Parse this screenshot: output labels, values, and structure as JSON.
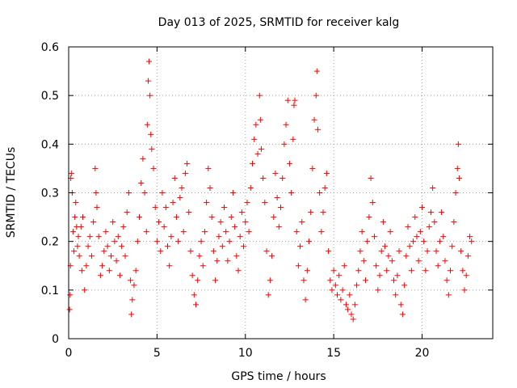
{
  "chart_data": {
    "type": "scatter",
    "title": "Day 013 of 2025, SRMTID for receiver kalg",
    "xlabel": "GPS time / hours",
    "ylabel": "SRMTID / TECUs",
    "xlim": [
      0,
      24
    ],
    "ylim": [
      0,
      0.6
    ],
    "xticks": [
      0,
      5,
      10,
      15,
      20
    ],
    "yticks": [
      0,
      0.1,
      0.2,
      0.3,
      0.4,
      0.5,
      0.6
    ],
    "xtick_labels": [
      "0",
      "5",
      "10",
      "15",
      "20"
    ],
    "ytick_labels": [
      "0",
      "0.1",
      "0.2",
      "0.3",
      "0.4",
      "0.5",
      "0.6"
    ],
    "grid": true,
    "marker": "+",
    "series_color": "#ff0000",
    "series": [
      {
        "name": "SRMTID",
        "points": [
          [
            0.05,
            0.06
          ],
          [
            0.08,
            0.09
          ],
          [
            0.1,
            0.15
          ],
          [
            0.12,
            0.33
          ],
          [
            0.15,
            0.34
          ],
          [
            0.2,
            0.3
          ],
          [
            0.25,
            0.22
          ],
          [
            0.3,
            0.18
          ],
          [
            0.35,
            0.25
          ],
          [
            0.4,
            0.28
          ],
          [
            0.45,
            0.23
          ],
          [
            0.5,
            0.19
          ],
          [
            0.55,
            0.21
          ],
          [
            0.6,
            0.17
          ],
          [
            0.7,
            0.23
          ],
          [
            0.75,
            0.14
          ],
          [
            0.8,
            0.25
          ],
          [
            0.9,
            0.1
          ],
          [
            1.0,
            0.15
          ],
          [
            1.1,
            0.19
          ],
          [
            1.2,
            0.21
          ],
          [
            1.3,
            0.17
          ],
          [
            1.4,
            0.24
          ],
          [
            1.5,
            0.35
          ],
          [
            1.55,
            0.3
          ],
          [
            1.6,
            0.27
          ],
          [
            1.7,
            0.21
          ],
          [
            1.8,
            0.13
          ],
          [
            1.9,
            0.15
          ],
          [
            2.0,
            0.18
          ],
          [
            2.1,
            0.22
          ],
          [
            2.2,
            0.19
          ],
          [
            2.3,
            0.14
          ],
          [
            2.4,
            0.17
          ],
          [
            2.5,
            0.24
          ],
          [
            2.6,
            0.2
          ],
          [
            2.7,
            0.16
          ],
          [
            2.8,
            0.21
          ],
          [
            2.9,
            0.13
          ],
          [
            3.0,
            0.19
          ],
          [
            3.1,
            0.23
          ],
          [
            3.2,
            0.17
          ],
          [
            3.3,
            0.26
          ],
          [
            3.4,
            0.3
          ],
          [
            3.5,
            0.12
          ],
          [
            3.55,
            0.05
          ],
          [
            3.6,
            0.08
          ],
          [
            3.7,
            0.11
          ],
          [
            3.8,
            0.14
          ],
          [
            3.9,
            0.2
          ],
          [
            4.0,
            0.25
          ],
          [
            4.1,
            0.32
          ],
          [
            4.2,
            0.37
          ],
          [
            4.3,
            0.3
          ],
          [
            4.4,
            0.22
          ],
          [
            4.45,
            0.44
          ],
          [
            4.5,
            0.53
          ],
          [
            4.55,
            0.57
          ],
          [
            4.6,
            0.5
          ],
          [
            4.65,
            0.42
          ],
          [
            4.7,
            0.39
          ],
          [
            4.8,
            0.35
          ],
          [
            4.9,
            0.27
          ],
          [
            5.0,
            0.2
          ],
          [
            5.1,
            0.24
          ],
          [
            5.2,
            0.18
          ],
          [
            5.3,
            0.3
          ],
          [
            5.4,
            0.23
          ],
          [
            5.5,
            0.27
          ],
          [
            5.6,
            0.19
          ],
          [
            5.7,
            0.15
          ],
          [
            5.8,
            0.21
          ],
          [
            5.9,
            0.28
          ],
          [
            6.0,
            0.33
          ],
          [
            6.1,
            0.25
          ],
          [
            6.2,
            0.2
          ],
          [
            6.3,
            0.29
          ],
          [
            6.4,
            0.31
          ],
          [
            6.5,
            0.22
          ],
          [
            6.6,
            0.34
          ],
          [
            6.7,
            0.36
          ],
          [
            6.8,
            0.26
          ],
          [
            6.9,
            0.18
          ],
          [
            7.0,
            0.13
          ],
          [
            7.1,
            0.09
          ],
          [
            7.2,
            0.07
          ],
          [
            7.3,
            0.12
          ],
          [
            7.4,
            0.17
          ],
          [
            7.5,
            0.2
          ],
          [
            7.6,
            0.15
          ],
          [
            7.7,
            0.22
          ],
          [
            7.8,
            0.28
          ],
          [
            7.9,
            0.35
          ],
          [
            8.0,
            0.31
          ],
          [
            8.1,
            0.25
          ],
          [
            8.2,
            0.18
          ],
          [
            8.3,
            0.12
          ],
          [
            8.4,
            0.16
          ],
          [
            8.5,
            0.21
          ],
          [
            8.6,
            0.24
          ],
          [
            8.7,
            0.19
          ],
          [
            8.8,
            0.27
          ],
          [
            8.9,
            0.22
          ],
          [
            9.0,
            0.16
          ],
          [
            9.1,
            0.2
          ],
          [
            9.2,
            0.25
          ],
          [
            9.3,
            0.3
          ],
          [
            9.4,
            0.23
          ],
          [
            9.5,
            0.17
          ],
          [
            9.6,
            0.14
          ],
          [
            9.7,
            0.21
          ],
          [
            9.8,
            0.26
          ],
          [
            9.9,
            0.19
          ],
          [
            10.0,
            0.24
          ],
          [
            10.1,
            0.28
          ],
          [
            10.2,
            0.22
          ],
          [
            10.3,
            0.31
          ],
          [
            10.4,
            0.36
          ],
          [
            10.5,
            0.41
          ],
          [
            10.6,
            0.44
          ],
          [
            10.7,
            0.38
          ],
          [
            10.8,
            0.5
          ],
          [
            10.85,
            0.45
          ],
          [
            10.9,
            0.39
          ],
          [
            11.0,
            0.33
          ],
          [
            11.1,
            0.28
          ],
          [
            11.2,
            0.18
          ],
          [
            11.3,
            0.09
          ],
          [
            11.4,
            0.12
          ],
          [
            11.5,
            0.17
          ],
          [
            11.6,
            0.25
          ],
          [
            11.7,
            0.34
          ],
          [
            11.8,
            0.29
          ],
          [
            11.9,
            0.23
          ],
          [
            12.0,
            0.27
          ],
          [
            12.1,
            0.33
          ],
          [
            12.2,
            0.4
          ],
          [
            12.3,
            0.44
          ],
          [
            12.4,
            0.49
          ],
          [
            12.5,
            0.36
          ],
          [
            12.6,
            0.3
          ],
          [
            12.7,
            0.41
          ],
          [
            12.75,
            0.48
          ],
          [
            12.8,
            0.49
          ],
          [
            12.9,
            0.22
          ],
          [
            13.0,
            0.15
          ],
          [
            13.1,
            0.19
          ],
          [
            13.2,
            0.24
          ],
          [
            13.3,
            0.12
          ],
          [
            13.4,
            0.08
          ],
          [
            13.5,
            0.14
          ],
          [
            13.6,
            0.2
          ],
          [
            13.7,
            0.26
          ],
          [
            13.8,
            0.35
          ],
          [
            13.9,
            0.45
          ],
          [
            14.0,
            0.5
          ],
          [
            14.05,
            0.55
          ],
          [
            14.1,
            0.43
          ],
          [
            14.2,
            0.3
          ],
          [
            14.3,
            0.22
          ],
          [
            14.4,
            0.26
          ],
          [
            14.5,
            0.31
          ],
          [
            14.6,
            0.34
          ],
          [
            14.7,
            0.18
          ],
          [
            14.8,
            0.12
          ],
          [
            14.9,
            0.1
          ],
          [
            15.0,
            0.14
          ],
          [
            15.1,
            0.11
          ],
          [
            15.2,
            0.09
          ],
          [
            15.3,
            0.13
          ],
          [
            15.4,
            0.08
          ],
          [
            15.5,
            0.1
          ],
          [
            15.6,
            0.15
          ],
          [
            15.7,
            0.07
          ],
          [
            15.8,
            0.06
          ],
          [
            15.9,
            0.09
          ],
          [
            16.0,
            0.05
          ],
          [
            16.1,
            0.04
          ],
          [
            16.2,
            0.07
          ],
          [
            16.3,
            0.11
          ],
          [
            16.4,
            0.14
          ],
          [
            16.5,
            0.18
          ],
          [
            16.6,
            0.22
          ],
          [
            16.7,
            0.16
          ],
          [
            16.8,
            0.12
          ],
          [
            16.9,
            0.2
          ],
          [
            17.0,
            0.25
          ],
          [
            17.1,
            0.33
          ],
          [
            17.2,
            0.28
          ],
          [
            17.3,
            0.21
          ],
          [
            17.4,
            0.15
          ],
          [
            17.5,
            0.1
          ],
          [
            17.6,
            0.13
          ],
          [
            17.7,
            0.18
          ],
          [
            17.8,
            0.24
          ],
          [
            17.9,
            0.19
          ],
          [
            18.0,
            0.14
          ],
          [
            18.1,
            0.17
          ],
          [
            18.2,
            0.22
          ],
          [
            18.3,
            0.16
          ],
          [
            18.4,
            0.12
          ],
          [
            18.5,
            0.09
          ],
          [
            18.6,
            0.13
          ],
          [
            18.7,
            0.18
          ],
          [
            18.8,
            0.07
          ],
          [
            18.9,
            0.05
          ],
          [
            19.0,
            0.11
          ],
          [
            19.1,
            0.17
          ],
          [
            19.2,
            0.23
          ],
          [
            19.3,
            0.19
          ],
          [
            19.4,
            0.14
          ],
          [
            19.5,
            0.2
          ],
          [
            19.6,
            0.25
          ],
          [
            19.7,
            0.21
          ],
          [
            19.8,
            0.16
          ],
          [
            19.9,
            0.22
          ],
          [
            20.0,
            0.27
          ],
          [
            20.1,
            0.2
          ],
          [
            20.2,
            0.14
          ],
          [
            20.3,
            0.18
          ],
          [
            20.4,
            0.23
          ],
          [
            20.5,
            0.26
          ],
          [
            20.6,
            0.31
          ],
          [
            20.7,
            0.24
          ],
          [
            20.8,
            0.18
          ],
          [
            20.9,
            0.15
          ],
          [
            21.0,
            0.2
          ],
          [
            21.1,
            0.26
          ],
          [
            21.2,
            0.21
          ],
          [
            21.3,
            0.16
          ],
          [
            21.4,
            0.12
          ],
          [
            21.5,
            0.09
          ],
          [
            21.6,
            0.14
          ],
          [
            21.7,
            0.19
          ],
          [
            21.8,
            0.24
          ],
          [
            21.9,
            0.3
          ],
          [
            22.0,
            0.35
          ],
          [
            22.05,
            0.4
          ],
          [
            22.1,
            0.33
          ],
          [
            22.2,
            0.18
          ],
          [
            22.3,
            0.14
          ],
          [
            22.4,
            0.1
          ],
          [
            22.5,
            0.13
          ],
          [
            22.6,
            0.17
          ],
          [
            22.7,
            0.21
          ],
          [
            22.8,
            0.2
          ]
        ]
      }
    ]
  }
}
